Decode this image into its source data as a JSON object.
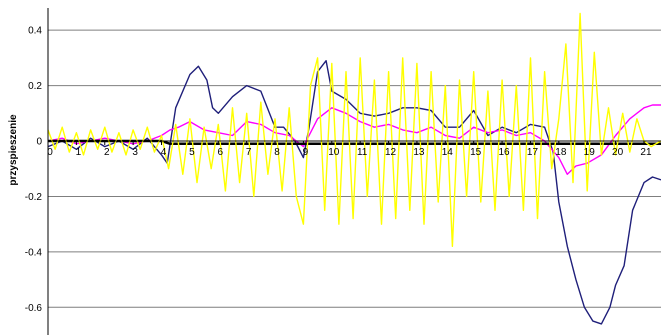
{
  "chart_data": {
    "type": "line",
    "title": "",
    "xlabel": "",
    "ylabel": "przyspieszenie",
    "xlim": [
      0,
      21.6
    ],
    "ylim": [
      -0.7,
      0.48
    ],
    "grid": "horizontal",
    "legend": "none",
    "yticks": [
      {
        "value": 0.4,
        "label": "0.4"
      },
      {
        "value": 0.2,
        "label": "0.2"
      },
      {
        "value": 0,
        "label": "0"
      },
      {
        "value": -0.2,
        "label": "-0.2"
      },
      {
        "value": -0.4,
        "label": "-0.4"
      },
      {
        "value": -0.6,
        "label": "-0.6"
      }
    ],
    "xticks": [
      {
        "value": 0,
        "label": "0"
      },
      {
        "value": 1,
        "label": "1"
      },
      {
        "value": 2,
        "label": "2"
      },
      {
        "value": 3,
        "label": "3"
      },
      {
        "value": 4,
        "label": "4"
      },
      {
        "value": 5,
        "label": "5"
      },
      {
        "value": 6,
        "label": "6"
      },
      {
        "value": 7,
        "label": "7"
      },
      {
        "value": 8,
        "label": "8"
      },
      {
        "value": 9,
        "label": "9"
      },
      {
        "value": 10,
        "label": "10"
      },
      {
        "value": 11,
        "label": "11"
      },
      {
        "value": 12,
        "label": "12"
      },
      {
        "value": 13,
        "label": "13"
      },
      {
        "value": 14,
        "label": "14"
      },
      {
        "value": 15,
        "label": "15"
      },
      {
        "value": 16,
        "label": "16"
      },
      {
        "value": 17,
        "label": "17"
      },
      {
        "value": 18,
        "label": "18"
      },
      {
        "value": 19,
        "label": "19"
      },
      {
        "value": 20,
        "label": "20"
      },
      {
        "value": 21,
        "label": "21"
      }
    ],
    "series": [
      {
        "color": "#1f1f7a",
        "x": [
          0,
          0.5,
          1,
          1.5,
          2,
          2.5,
          3,
          3.5,
          4,
          4.2,
          4.5,
          5,
          5.3,
          5.6,
          5.8,
          6,
          6.5,
          7,
          7.5,
          8,
          8.3,
          8.7,
          9,
          9.2,
          9.5,
          9.8,
          10,
          10.5,
          11,
          11.5,
          12,
          12.5,
          13,
          13.5,
          14,
          14.5,
          15,
          15.5,
          16,
          16.5,
          17,
          17.5,
          17.8,
          18,
          18.3,
          18.6,
          18.9,
          19.2,
          19.5,
          19.8,
          20,
          20.3,
          20.6,
          21,
          21.3,
          21.6
        ],
        "y": [
          -0.02,
          0.0,
          -0.03,
          0.01,
          -0.02,
          0.0,
          -0.03,
          0.01,
          -0.05,
          -0.08,
          0.12,
          0.24,
          0.27,
          0.22,
          0.12,
          0.1,
          0.16,
          0.2,
          0.18,
          0.05,
          0.05,
          0.0,
          -0.06,
          0.05,
          0.25,
          0.29,
          0.18,
          0.15,
          0.1,
          0.09,
          0.1,
          0.12,
          0.12,
          0.11,
          0.05,
          0.05,
          0.11,
          0.02,
          0.05,
          0.03,
          0.06,
          0.05,
          -0.04,
          -0.22,
          -0.38,
          -0.5,
          -0.6,
          -0.65,
          -0.66,
          -0.6,
          -0.52,
          -0.45,
          -0.25,
          -0.15,
          -0.13,
          -0.14
        ]
      },
      {
        "color": "#ff00ff",
        "x": [
          0,
          0.5,
          1,
          1.5,
          2,
          2.5,
          3,
          3.5,
          4,
          4.3,
          4.6,
          5,
          5.5,
          6,
          6.5,
          7,
          7.5,
          8,
          8.5,
          9,
          9.5,
          10,
          10.5,
          11,
          11.5,
          12,
          12.5,
          13,
          13.5,
          14,
          14.5,
          15,
          15.5,
          16,
          16.5,
          17,
          17.5,
          18,
          18.3,
          18.6,
          19,
          19.5,
          20,
          20.5,
          21,
          21.3,
          21.6
        ],
        "y": [
          0.0,
          0.01,
          -0.01,
          0.0,
          0.01,
          0.0,
          -0.01,
          0.0,
          0.02,
          0.04,
          0.05,
          0.07,
          0.04,
          0.03,
          0.02,
          0.07,
          0.06,
          0.03,
          0.02,
          -0.02,
          0.08,
          0.12,
          0.1,
          0.07,
          0.05,
          0.06,
          0.04,
          0.03,
          0.05,
          0.02,
          0.01,
          0.05,
          0.03,
          0.04,
          0.02,
          0.03,
          0.0,
          -0.06,
          -0.12,
          -0.09,
          -0.08,
          -0.05,
          0.02,
          0.08,
          0.12,
          0.13,
          0.13
        ]
      },
      {
        "color": "#000000",
        "x": [
          0,
          1,
          2,
          3,
          4,
          4.3,
          5,
          6,
          7,
          8,
          9,
          10,
          11,
          12,
          13,
          14,
          15,
          16,
          17,
          17.4,
          18,
          18.5,
          19,
          20,
          21,
          21.6
        ],
        "y": [
          0.0,
          0.0,
          0.0,
          0.0,
          0.0,
          -0.01,
          -0.01,
          -0.01,
          -0.01,
          -0.01,
          -0.01,
          -0.01,
          -0.01,
          -0.01,
          -0.01,
          -0.01,
          -0.01,
          -0.01,
          -0.01,
          -0.01,
          -0.01,
          -0.01,
          -0.01,
          -0.01,
          -0.01,
          -0.01
        ]
      },
      {
        "color": "#ffff00",
        "x": [
          0,
          0.25,
          0.5,
          0.75,
          1,
          1.25,
          1.5,
          1.75,
          2,
          2.25,
          2.5,
          2.75,
          3,
          3.25,
          3.5,
          3.75,
          4,
          4.25,
          4.5,
          4.75,
          5,
          5.25,
          5.5,
          5.75,
          6,
          6.25,
          6.5,
          6.75,
          7,
          7.25,
          7.5,
          7.75,
          8,
          8.25,
          8.5,
          8.75,
          9,
          9.25,
          9.5,
          9.75,
          10,
          10.25,
          10.5,
          10.75,
          11,
          11.25,
          11.5,
          11.75,
          12,
          12.25,
          12.5,
          12.75,
          13,
          13.25,
          13.5,
          13.75,
          14,
          14.25,
          14.5,
          14.75,
          15,
          15.25,
          15.5,
          15.75,
          16,
          16.25,
          16.5,
          16.75,
          17,
          17.25,
          17.5,
          17.75,
          18,
          18.25,
          18.5,
          18.75,
          19,
          19.25,
          19.5,
          19.75,
          20,
          20.25,
          20.5,
          20.75,
          21,
          21.25,
          21.6
        ],
        "y": [
          0.04,
          -0.03,
          0.05,
          -0.04,
          0.03,
          -0.05,
          0.04,
          -0.03,
          0.05,
          -0.04,
          0.03,
          -0.05,
          0.04,
          -0.03,
          0.05,
          -0.04,
          0.02,
          -0.1,
          0.06,
          -0.12,
          0.08,
          -0.15,
          0.05,
          -0.1,
          0.06,
          -0.18,
          0.12,
          -0.15,
          0.1,
          -0.2,
          0.14,
          -0.12,
          0.08,
          -0.18,
          0.12,
          -0.2,
          -0.3,
          0.2,
          0.3,
          -0.25,
          0.28,
          -0.3,
          0.25,
          -0.28,
          0.3,
          -0.2,
          0.22,
          -0.3,
          0.25,
          -0.28,
          0.3,
          -0.25,
          0.28,
          -0.3,
          0.25,
          -0.22,
          0.2,
          -0.38,
          0.22,
          -0.2,
          0.25,
          -0.22,
          0.18,
          -0.25,
          0.22,
          -0.2,
          0.2,
          -0.25,
          0.3,
          -0.28,
          0.25,
          -0.1,
          0.08,
          0.35,
          -0.15,
          0.46,
          -0.18,
          0.32,
          -0.05,
          0.12,
          -0.05,
          0.1,
          -0.04,
          0.08,
          0.0,
          -0.02,
          0.0
        ]
      }
    ]
  }
}
